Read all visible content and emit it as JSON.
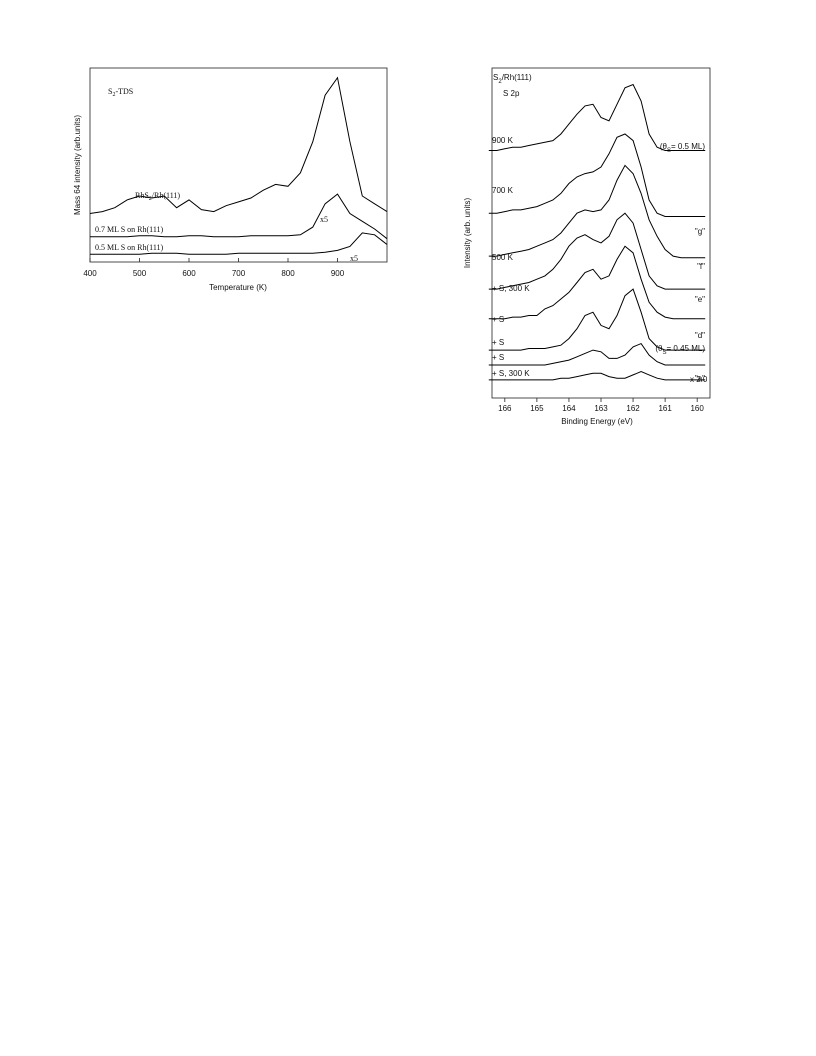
{
  "chart_data": [
    {
      "type": "line",
      "title": [
        "S",
        "2",
        "-TDS"
      ],
      "x_label": "Temperature   (K)",
      "y_label": "Mass 64 intensity  (arb.units)",
      "x": [
        400,
        425,
        450,
        475,
        500,
        525,
        550,
        575,
        600,
        625,
        650,
        675,
        700,
        725,
        750,
        775,
        800,
        825,
        850,
        875,
        900,
        925,
        950,
        975,
        1000
      ],
      "series": [
        {
          "name": [
            "RhS",
            "2",
            "/Rh(111)"
          ],
          "color": "#000000",
          "values": [
            25,
            26,
            28,
            32,
            34,
            33,
            34,
            28,
            32,
            27,
            26,
            29,
            31,
            33,
            37,
            40,
            39,
            46,
            62,
            86,
            95,
            62,
            34,
            30,
            26
          ]
        },
        {
          "name": "0.7 ML S on Rh(111)",
          "color": "#000000",
          "values": [
            13,
            13,
            13,
            13,
            13.5,
            13.5,
            13,
            13,
            13.5,
            13.5,
            13,
            13,
            13,
            13.5,
            13.5,
            13.5,
            13.5,
            14,
            18,
            30,
            35,
            25,
            21,
            17,
            12
          ]
        },
        {
          "name": "0.5 ML S on Rh(111)",
          "color": "#000000",
          "values": [
            4,
            4,
            4,
            4,
            4,
            4.5,
            4.5,
            4.5,
            4,
            4,
            4,
            4,
            4.5,
            4.5,
            4.5,
            4.5,
            4.5,
            4.5,
            4.5,
            5,
            6,
            8,
            15,
            14,
            9
          ]
        }
      ],
      "annotations": [
        "x5",
        "x5"
      ],
      "xlim": [
        400,
        1000
      ],
      "xticks": [
        400,
        500,
        600,
        700,
        800,
        900
      ],
      "ylim": [
        0,
        100
      ]
    },
    {
      "type": "line",
      "title": [
        "S",
        "2",
        "/Rh(111)"
      ],
      "subtitle": "S 2p",
      "x_label": "Binding Energy (eV)",
      "y_label": "Intensity (arb. units)",
      "x": [
        166.5,
        166.25,
        166,
        165.75,
        165.5,
        165.25,
        165,
        164.75,
        164.5,
        164.25,
        164,
        163.75,
        163.5,
        163.25,
        163,
        162.75,
        162.5,
        162.25,
        162,
        161.75,
        161.5,
        161.25,
        161,
        160.75,
        160.5,
        160.25,
        160,
        159.75
      ],
      "series": [
        {
          "name": "900 K",
          "tag": [
            "(θ",
            "S",
            "= 0.5 ML)"
          ],
          "color": "#000000",
          "values": [
            75,
            75,
            75.5,
            76,
            76,
            76.5,
            77,
            77.5,
            78,
            80,
            83,
            86,
            88.5,
            89,
            85,
            84,
            89,
            94,
            95,
            90,
            80,
            76,
            75,
            75,
            75,
            75,
            75,
            75
          ]
        },
        {
          "name": "700 K",
          "tag": "\"g\"",
          "color": "#000000",
          "values": [
            56,
            56,
            56.5,
            57,
            57,
            57.5,
            58,
            59,
            60,
            62,
            65,
            67,
            68,
            68.5,
            70,
            74,
            79,
            80,
            78,
            70,
            60,
            56,
            55,
            55,
            55,
            55,
            55,
            55
          ]
        },
        {
          "name": "500 K",
          "tag": "\"f\"",
          "color": "#000000",
          "values": [
            43,
            43,
            43.5,
            44,
            44.5,
            45,
            46,
            47,
            48,
            50,
            53,
            56,
            57,
            56.5,
            57,
            60,
            66,
            70.5,
            68,
            62,
            54,
            49,
            45,
            43,
            42.5,
            42.5,
            42.5,
            42.5
          ]
        },
        {
          "name": "+ S, 300 K",
          "tag": "\"e\"",
          "color": "#000000",
          "values": [
            33,
            33,
            33.5,
            34,
            34.5,
            35,
            36,
            37,
            39,
            42,
            46,
            48.5,
            49.5,
            48,
            47,
            49,
            54,
            56,
            53,
            45,
            37,
            34,
            33,
            33,
            33,
            33,
            33,
            33
          ]
        },
        {
          "name": "+ S",
          "tag": "\"d\"",
          "color": "#000000",
          "values": [
            24,
            24,
            24,
            24.5,
            24.5,
            25,
            25,
            27,
            28,
            30,
            32,
            35,
            38,
            39,
            36,
            37,
            42,
            46,
            44,
            36,
            29,
            26,
            24.5,
            24,
            24,
            24,
            24,
            24
          ]
        },
        {
          "name": "+ S",
          "tag": [
            "(θ",
            "S",
            "= 0.45 ML)"
          ],
          "color": "#000000",
          "values": [
            14.5,
            14.5,
            14.5,
            14.5,
            14.5,
            15,
            15,
            15,
            15.5,
            16,
            18,
            21,
            25,
            26,
            22,
            21,
            25,
            31,
            33,
            26,
            18,
            15.5,
            14.5,
            14.5,
            14.5,
            14.5,
            14.5,
            14.5
          ]
        },
        {
          "name": "+ S",
          "color": "#000000",
          "values": [
            10,
            10,
            10,
            10,
            10,
            10,
            10,
            10,
            10.5,
            11,
            11.5,
            12.5,
            13.5,
            14.5,
            14,
            12,
            12,
            13,
            15.5,
            16.5,
            13,
            11,
            10,
            10,
            10,
            10,
            10,
            10
          ]
        },
        {
          "name": "+ S, 300 K",
          "tag": "\"a\"",
          "color": "#000000",
          "values": [
            5.5,
            5.5,
            5.5,
            5.5,
            5.5,
            5.5,
            5.5,
            5.5,
            5.5,
            6,
            6,
            6.5,
            7,
            7.5,
            7.5,
            6.5,
            6,
            6,
            7,
            8,
            7,
            6,
            5.5,
            5.5,
            5.5,
            5.5,
            5.5,
            5.5
          ]
        }
      ],
      "annotations": [
        "x 2.0"
      ],
      "xlim": [
        166.4,
        159.6
      ],
      "xticks": [
        166,
        165,
        164,
        163,
        162,
        161,
        160
      ],
      "ylim": [
        0,
        100
      ]
    }
  ]
}
